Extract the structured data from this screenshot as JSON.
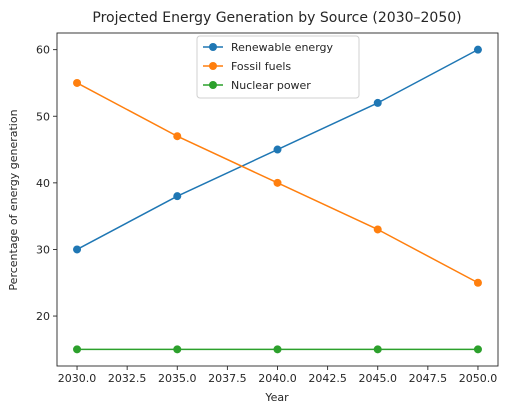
{
  "chart_data": {
    "type": "line",
    "title": "Projected Energy Generation by Source (2030–2050)",
    "xlabel": "Year",
    "ylabel": "Percentage of energy generation",
    "x": [
      2030,
      2035,
      2040,
      2045,
      2050
    ],
    "xlim": [
      2029,
      2051
    ],
    "ylim": [
      12.5,
      62.5
    ],
    "xticks": [
      2030.0,
      2032.5,
      2035.0,
      2037.5,
      2040.0,
      2042.5,
      2045.0,
      2047.5,
      2050.0
    ],
    "xtick_labels": [
      "2030.0",
      "2032.5",
      "2035.0",
      "2037.5",
      "2040.0",
      "2042.5",
      "2045.0",
      "2047.5",
      "2050.0"
    ],
    "yticks": [
      20,
      30,
      40,
      50,
      60
    ],
    "ytick_labels": [
      "20",
      "30",
      "40",
      "50",
      "60"
    ],
    "grid": false,
    "legend_position": "top-center",
    "series": [
      {
        "name": "Renewable energy",
        "color": "#1f77b4",
        "values": [
          30,
          38,
          45,
          52,
          60
        ]
      },
      {
        "name": "Fossil fuels",
        "color": "#ff7f0e",
        "values": [
          55,
          47,
          40,
          33,
          25
        ]
      },
      {
        "name": "Nuclear power",
        "color": "#2ca02c",
        "values": [
          15,
          15,
          15,
          15,
          15
        ]
      }
    ]
  }
}
